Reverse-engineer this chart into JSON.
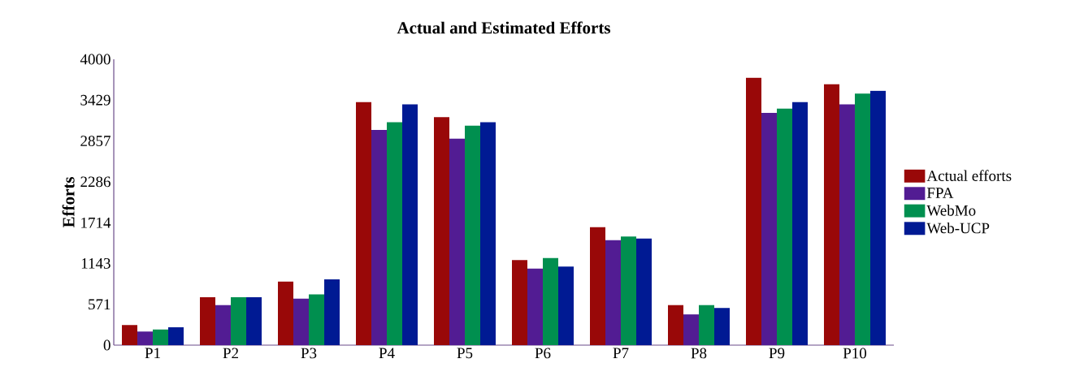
{
  "chart_data": {
    "type": "bar",
    "title": "Actual and Estimated Efforts",
    "ylabel": "Efforts",
    "categories": [
      "P1",
      "P2",
      "P3",
      "P4",
      "P5",
      "P6",
      "P7",
      "P8",
      "P9",
      "P10"
    ],
    "series": [
      {
        "name": "Actual efforts",
        "color": "#990808",
        "values": [
          280,
          670,
          890,
          3400,
          3190,
          1190,
          1650,
          560,
          3740,
          3650
        ]
      },
      {
        "name": "FPA",
        "color": "#521c93",
        "values": [
          190,
          560,
          650,
          3010,
          2890,
          1070,
          1470,
          430,
          3250,
          3370
        ]
      },
      {
        "name": "WebMo",
        "color": "#008f4f",
        "values": [
          220,
          670,
          710,
          3120,
          3070,
          1220,
          1520,
          560,
          3310,
          3520
        ]
      },
      {
        "name": "Web-UCP",
        "color": "#001a93",
        "values": [
          250,
          670,
          920,
          3370,
          3120,
          1100,
          1490,
          520,
          3400,
          3560
        ]
      }
    ],
    "ylim": [
      0,
      4000
    ],
    "yticks": [
      0,
      571,
      1143,
      1714,
      2286,
      2857,
      3429,
      4000
    ],
    "grid": false,
    "legend": "right"
  }
}
